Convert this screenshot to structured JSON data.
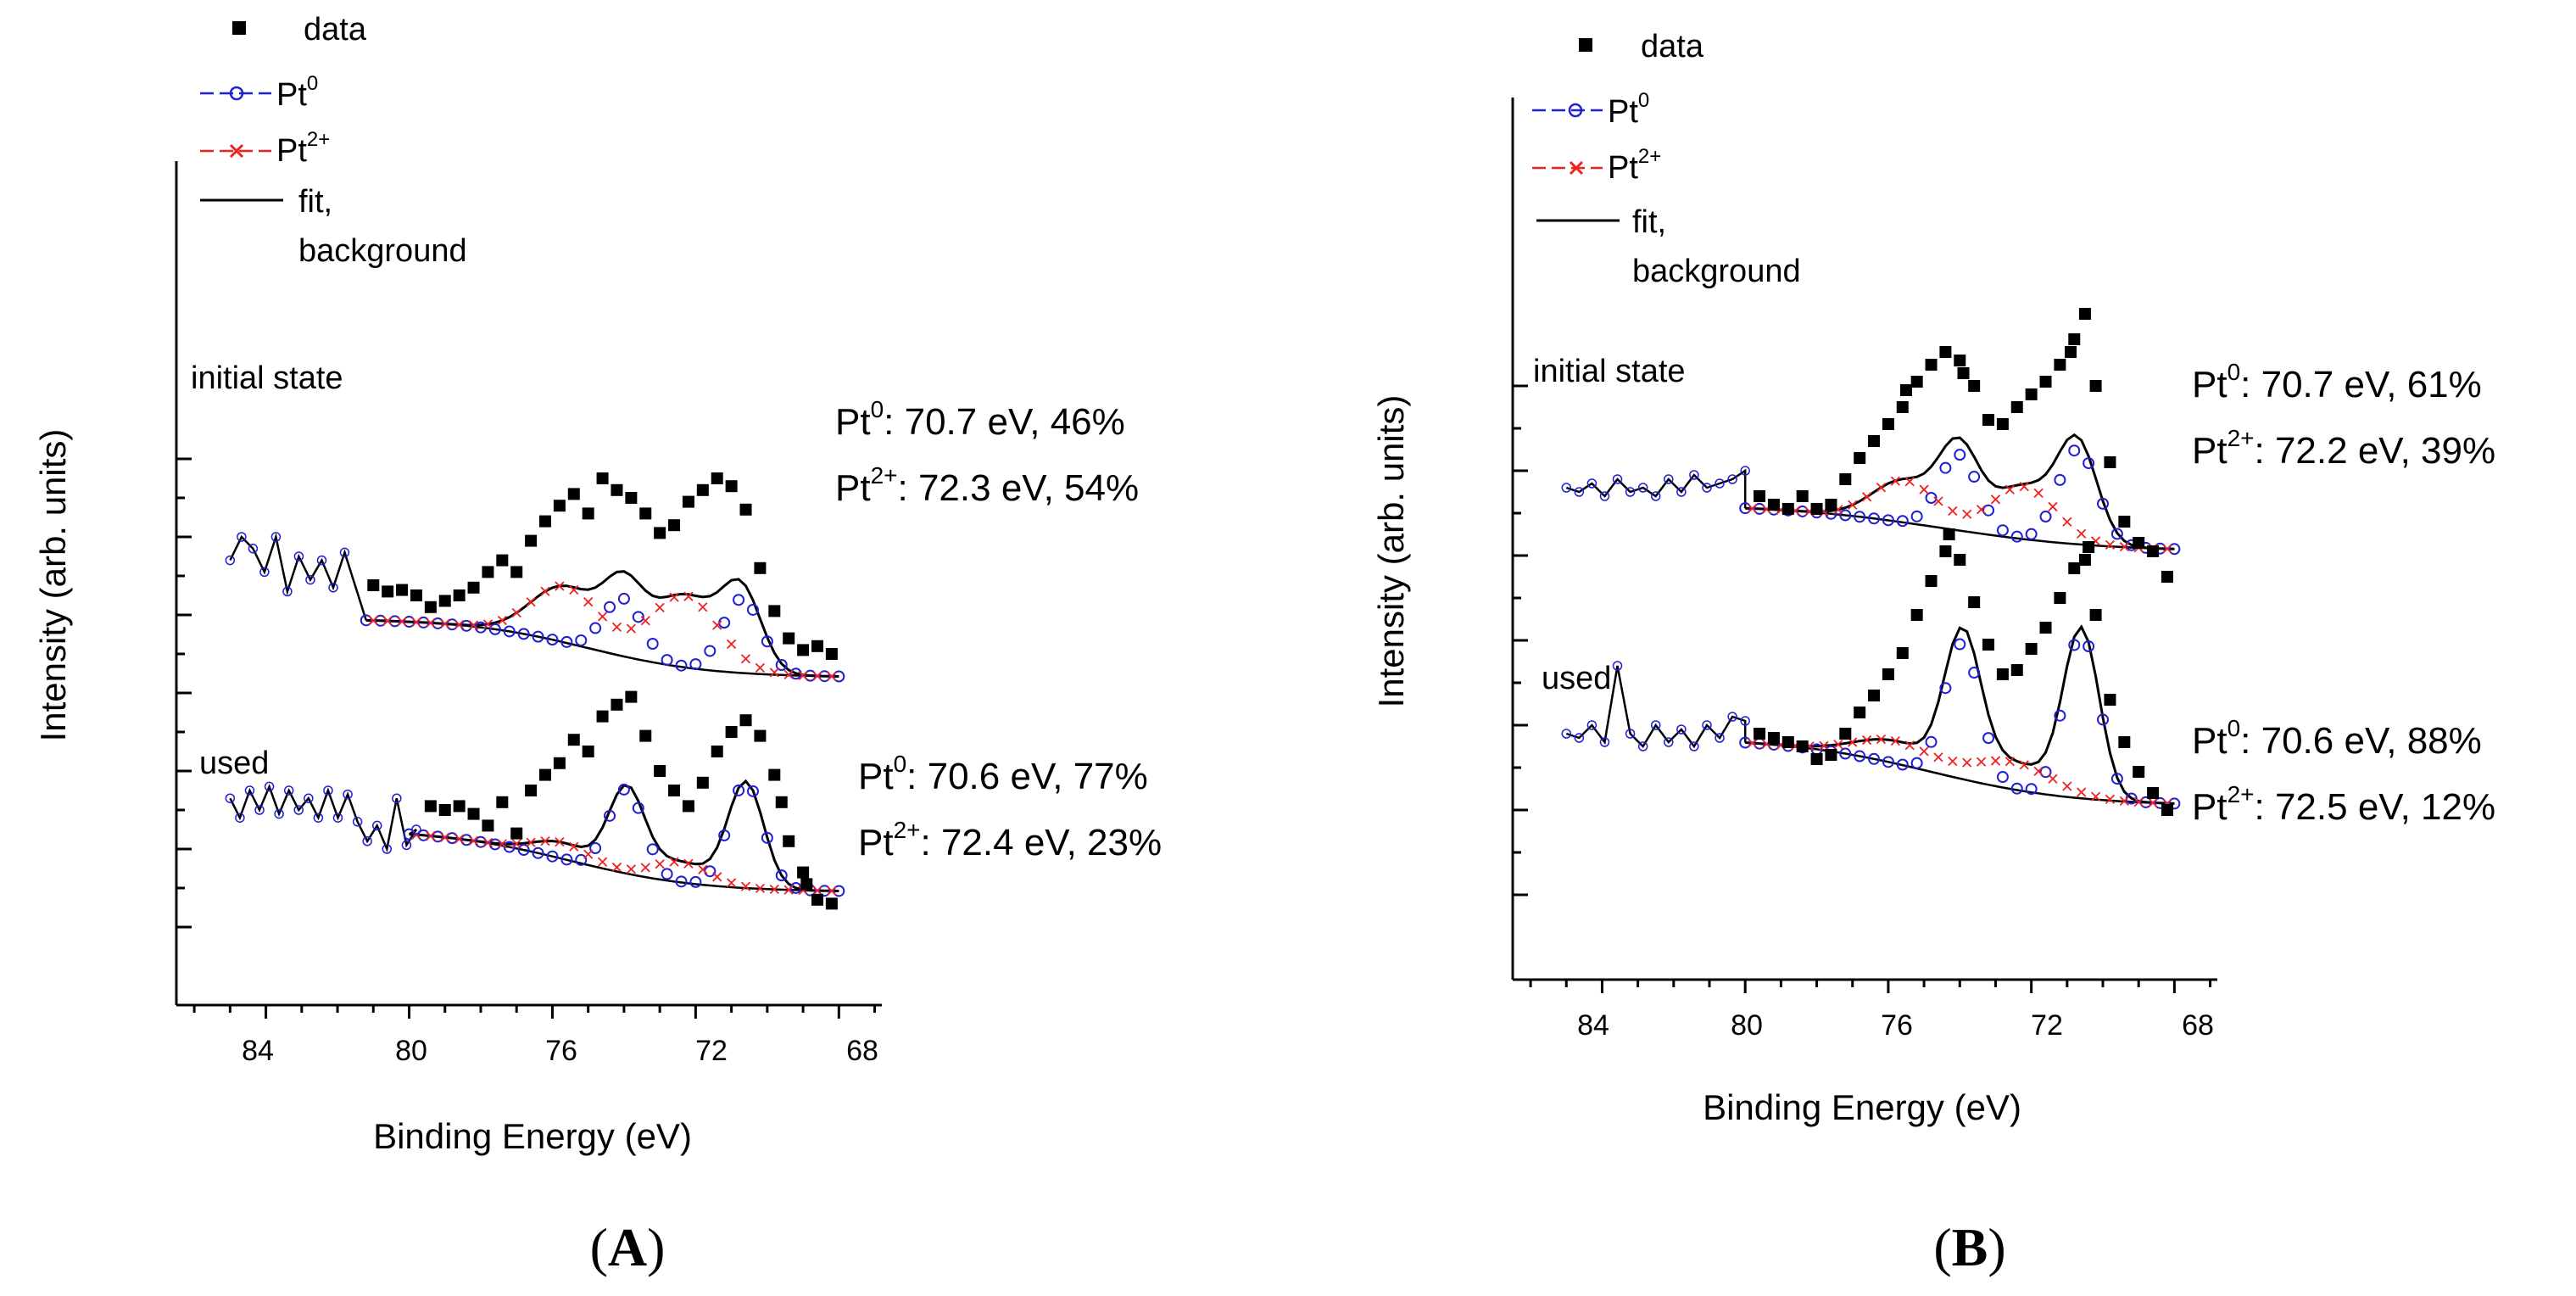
{
  "figure": {
    "panels": [
      {
        "panel_label": "(A)",
        "label_char": "A",
        "colors": {
          "data": "#000000",
          "pt0": "#1f1fd6",
          "pt2": "#ee2222",
          "fit": "#000000"
        },
        "legend": {
          "data": "data",
          "pt0_base": "Pt",
          "pt0_sup": "0",
          "pt2_base": "Pt",
          "pt2_sup": "2+",
          "fit_line1": "fit,",
          "fit_line2": "background"
        },
        "chart_data": {
          "type": "scatter",
          "title": "",
          "xlabel": "Binding Energy (eV)",
          "ylabel": "Intensity (arb. units)",
          "xlim": [
            86.5,
            66.8
          ],
          "ylim": [
            0,
            10
          ],
          "x_major_ticks": [
            84,
            80,
            76,
            72,
            68
          ],
          "x_tick_labels": [
            "84",
            "80",
            "76",
            "72",
            "68"
          ],
          "x_minor_step": 1,
          "y_major_ticks": [
            1,
            2,
            3,
            4,
            5,
            6,
            7
          ],
          "y_minor_ticks": [
            1.5,
            2.5,
            3.5,
            4.5,
            5.5,
            6.5
          ],
          "y_tick_labels": [],
          "x_start": 85,
          "spectra": [
            {
              "name": "initial state",
              "noise_until": 81.8,
              "baseline_scale": 1,
              "baseline_slope": 0.018,
              "fit_start": 81.2,
              "annotations": [
                {
                  "prefix": "Pt",
                  "sup": "0",
                  "text": ":  70.7 eV, 46%"
                },
                {
                  "prefix": "Pt",
                  "sup": "2+",
                  "text": ": 72.3 eV, 54%"
                }
              ],
              "noise_values": [
                5.7,
                6.0,
                5.85,
                5.55,
                6.0,
                5.3,
                5.75,
                5.45,
                5.7,
                5.35,
                5.8
              ],
              "params": {
                "bg_high": 4.95,
                "bg_low": 4.2,
                "bg_center": 75.0,
                "bg_width": 1.7,
                "pt0": {
                  "amp": 0.95,
                  "center": 70.7,
                  "so": 3.33,
                  "ratio": 0.78,
                  "width": 0.55
                },
                "pt2": {
                  "amp": 0.92,
                  "center": 72.3,
                  "so": 3.33,
                  "ratio": 0.78,
                  "width": 0.95
                }
              },
              "data_points": [
                [
                  81.0,
                  5.38
                ],
                [
                  80.6,
                  5.3
                ],
                [
                  80.2,
                  5.32
                ],
                [
                  79.8,
                  5.25
                ],
                [
                  79.4,
                  5.1
                ],
                [
                  79.0,
                  5.18
                ],
                [
                  78.6,
                  5.25
                ],
                [
                  78.2,
                  5.35
                ],
                [
                  77.8,
                  5.55
                ],
                [
                  77.4,
                  5.7
                ],
                [
                  77.0,
                  5.55
                ],
                [
                  76.6,
                  5.95
                ],
                [
                  76.2,
                  6.2
                ],
                [
                  75.8,
                  6.4
                ],
                [
                  75.4,
                  6.55
                ],
                [
                  75.0,
                  6.3
                ],
                [
                  74.6,
                  6.75
                ],
                [
                  74.2,
                  6.6
                ],
                [
                  73.8,
                  6.5
                ],
                [
                  73.4,
                  6.3
                ],
                [
                  73.0,
                  6.05
                ],
                [
                  72.6,
                  6.15
                ],
                [
                  72.2,
                  6.45
                ],
                [
                  71.8,
                  6.6
                ],
                [
                  71.4,
                  6.75
                ],
                [
                  71.0,
                  6.65
                ],
                [
                  70.6,
                  6.35
                ],
                [
                  70.2,
                  5.6
                ],
                [
                  69.8,
                  5.05
                ],
                [
                  69.4,
                  4.7
                ],
                [
                  69.0,
                  4.55
                ],
                [
                  68.6,
                  4.6
                ],
                [
                  68.2,
                  4.5
                ]
              ]
            },
            {
              "name": "used",
              "noise_until": 79.8,
              "baseline_scale": 1,
              "baseline_slope": 0.018,
              "fit_start": 80.0,
              "annotations": [
                {
                  "prefix": "Pt",
                  "sup": "0",
                  "text": ":  70.6 eV, 77%"
                },
                {
                  "prefix": "Pt",
                  "sup": "2+",
                  "text": ": 72.4 eV, 23%"
                }
              ],
              "noise_values": [
                2.65,
                2.4,
                2.75,
                2.5,
                2.8,
                2.45,
                2.75,
                2.5,
                2.65,
                2.4,
                2.75,
                2.4,
                2.7,
                2.35,
                2.1,
                2.3,
                2.0,
                2.65,
                2.05,
                2.25
              ],
              "params": {
                "bg_high": 2.25,
                "bg_low": 1.45,
                "bg_center": 75.5,
                "bg_width": 1.8,
                "pt0": {
                  "amp": 1.35,
                  "center": 70.6,
                  "so": 3.33,
                  "ratio": 0.8,
                  "width": 0.5
                },
                "pt2": {
                  "amp": 0.26,
                  "center": 72.4,
                  "so": 3.33,
                  "ratio": 0.8,
                  "width": 0.8
                }
              },
              "data_points": [
                [
                  79.4,
                  2.55
                ],
                [
                  79.0,
                  2.5
                ],
                [
                  78.6,
                  2.55
                ],
                [
                  78.2,
                  2.45
                ],
                [
                  77.8,
                  2.3
                ],
                [
                  77.4,
                  2.6
                ],
                [
                  77.0,
                  2.2
                ],
                [
                  76.6,
                  2.75
                ],
                [
                  76.2,
                  2.95
                ],
                [
                  75.8,
                  3.1
                ],
                [
                  75.4,
                  3.4
                ],
                [
                  75.0,
                  3.25
                ],
                [
                  74.6,
                  3.7
                ],
                [
                  74.2,
                  3.85
                ],
                [
                  73.8,
                  3.95
                ],
                [
                  73.4,
                  3.45
                ],
                [
                  73.0,
                  3.0
                ],
                [
                  72.6,
                  2.75
                ],
                [
                  72.2,
                  2.55
                ],
                [
                  71.8,
                  2.85
                ],
                [
                  71.4,
                  3.25
                ],
                [
                  71.0,
                  3.5
                ],
                [
                  70.6,
                  3.65
                ],
                [
                  70.2,
                  3.45
                ],
                [
                  69.8,
                  2.95
                ],
                [
                  69.4,
                  2.1
                ],
                [
                  69.0,
                  1.7
                ],
                [
                  68.6,
                  1.35
                ],
                [
                  68.2,
                  1.3
                ],
                [
                  69.6,
                  2.6
                ],
                [
                  68.9,
                  1.55
                ]
              ]
            }
          ]
        }
      },
      {
        "panel_label": "(B)",
        "label_char": "B",
        "colors": {
          "data": "#000000",
          "pt0": "#1f1fd6",
          "pt2": "#ee2222",
          "fit": "#000000"
        },
        "legend": {
          "data": "data",
          "pt0_base": "Pt",
          "pt0_sup": "0",
          "pt2_base": "Pt",
          "pt2_sup": "2+",
          "fit_line1": "fit,",
          "fit_line2": "background"
        },
        "chart_data": {
          "type": "scatter",
          "title": "",
          "xlabel": "Binding Energy (eV)",
          "ylabel": "Intensity (arb. units)",
          "xlim": [
            86.5,
            66.8
          ],
          "ylim": [
            0,
            10
          ],
          "x_major_ticks": [
            84,
            80,
            76,
            72,
            68
          ],
          "x_tick_labels": [
            "84",
            "80",
            "76",
            "72",
            "68"
          ],
          "x_minor_step": 1,
          "y_major_ticks": [
            1,
            2,
            3,
            4,
            5,
            6,
            7
          ],
          "y_minor_ticks": [
            1.5,
            2.5,
            3.5,
            4.5,
            5.5,
            6.5
          ],
          "y_tick_labels": [],
          "x_start": 85,
          "spectra": [
            {
              "name": "initial state",
              "noise_until": 80.0,
              "baseline_scale": 1,
              "baseline_slope": 0.03,
              "fit_start": 80.0,
              "annotations": [
                {
                  "prefix": "Pt",
                  "sup": "0",
                  "text": ":  70.7 eV, 61%"
                },
                {
                  "prefix": "Pt",
                  "sup": "2+",
                  "text": ": 72.2 eV, 39%"
                }
              ],
              "noise_values": [
                5.8,
                5.75,
                5.85,
                5.7,
                5.9,
                5.75,
                5.8,
                5.7,
                5.9,
                5.75,
                5.95,
                5.8,
                5.85,
                5.9,
                6.0
              ],
              "params": {
                "bg_high": 5.6,
                "bg_low": 5.05,
                "bg_center": 74.5,
                "bg_width": 2.2,
                "pt0": {
                  "amp": 1.12,
                  "center": 70.7,
                  "so": 3.33,
                  "ratio": 0.8,
                  "width": 0.55
                },
                "pt2": {
                  "amp": 0.62,
                  "center": 72.2,
                  "so": 3.33,
                  "ratio": 0.8,
                  "width": 0.9
                }
              },
              "data_points": [
                [
                  79.6,
                  5.7
                ],
                [
                  79.2,
                  5.6
                ],
                [
                  78.8,
                  5.55
                ],
                [
                  78.4,
                  5.7
                ],
                [
                  78.0,
                  5.55
                ],
                [
                  77.6,
                  5.6
                ],
                [
                  77.2,
                  5.9
                ],
                [
                  76.8,
                  6.15
                ],
                [
                  76.4,
                  6.35
                ],
                [
                  76.0,
                  6.55
                ],
                [
                  75.6,
                  6.75
                ],
                [
                  75.2,
                  7.05
                ],
                [
                  74.8,
                  7.25
                ],
                [
                  74.4,
                  7.4
                ],
                [
                  74.0,
                  7.3
                ],
                [
                  73.6,
                  7.0
                ],
                [
                  73.2,
                  6.6
                ],
                [
                  72.8,
                  6.55
                ],
                [
                  72.4,
                  6.75
                ],
                [
                  72.0,
                  6.9
                ],
                [
                  71.6,
                  7.05
                ],
                [
                  71.2,
                  7.25
                ],
                [
                  70.8,
                  7.55
                ],
                [
                  70.5,
                  7.85
                ],
                [
                  70.2,
                  7.0
                ],
                [
                  69.8,
                  6.1
                ],
                [
                  69.4,
                  5.4
                ],
                [
                  69.0,
                  5.15
                ],
                [
                  68.6,
                  5.05
                ],
                [
                  68.2,
                  4.75
                ],
                [
                  70.9,
                  7.4
                ],
                [
                  73.9,
                  7.15
                ],
                [
                  75.5,
                  6.95
                ]
              ]
            },
            {
              "name": "used",
              "noise_until": 80.0,
              "baseline_scale": 1,
              "baseline_slope": 0.03,
              "fit_start": 80.0,
              "annotations": [
                {
                  "prefix": "Pt",
                  "sup": "0",
                  "text": ":  70.6 eV, 88%"
                },
                {
                  "prefix": "Pt",
                  "sup": "2+",
                  "text": ": 72.5 eV, 12%"
                }
              ],
              "noise_values": [
                2.9,
                2.85,
                3.0,
                2.8,
                3.7,
                2.9,
                2.75,
                3.0,
                2.8,
                2.95,
                2.75,
                3.0,
                2.85,
                3.1,
                3.05
              ],
              "params": {
                "bg_high": 2.85,
                "bg_low": 2.05,
                "bg_center": 74.8,
                "bg_width": 2.0,
                "pt0": {
                  "amp": 1.95,
                  "center": 70.6,
                  "so": 3.33,
                  "ratio": 0.82,
                  "width": 0.5
                },
                "pt2": {
                  "amp": 0.32,
                  "center": 72.5,
                  "so": 3.33,
                  "ratio": 0.82,
                  "width": 1.1
                }
              },
              "data_points": [
                [
                  79.6,
                  2.9
                ],
                [
                  79.2,
                  2.85
                ],
                [
                  78.8,
                  2.8
                ],
                [
                  78.4,
                  2.75
                ],
                [
                  78.0,
                  2.6
                ],
                [
                  77.6,
                  2.65
                ],
                [
                  77.2,
                  2.9
                ],
                [
                  76.8,
                  3.15
                ],
                [
                  76.4,
                  3.35
                ],
                [
                  76.0,
                  3.6
                ],
                [
                  75.6,
                  3.85
                ],
                [
                  75.2,
                  4.3
                ],
                [
                  74.8,
                  4.7
                ],
                [
                  74.4,
                  5.05
                ],
                [
                  74.0,
                  4.95
                ],
                [
                  73.6,
                  4.45
                ],
                [
                  73.2,
                  3.95
                ],
                [
                  72.8,
                  3.6
                ],
                [
                  72.4,
                  3.65
                ],
                [
                  72.0,
                  3.9
                ],
                [
                  71.6,
                  4.15
                ],
                [
                  71.2,
                  4.5
                ],
                [
                  70.8,
                  4.85
                ],
                [
                  70.5,
                  4.95
                ],
                [
                  70.2,
                  4.3
                ],
                [
                  69.8,
                  3.3
                ],
                [
                  69.4,
                  2.8
                ],
                [
                  69.0,
                  2.45
                ],
                [
                  68.6,
                  2.2
                ],
                [
                  68.2,
                  2.0
                ],
                [
                  74.3,
                  5.25
                ],
                [
                  70.4,
                  5.1
                ]
              ]
            }
          ]
        }
      }
    ]
  }
}
